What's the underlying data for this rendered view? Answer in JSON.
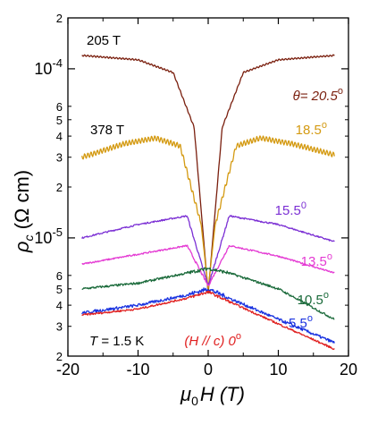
{
  "chart_data": {
    "type": "line",
    "title": "",
    "xlabel": "μ0H (T)",
    "ylabel": "ρc (Ω cm)",
    "x_axis": {
      "label_symbol": "μ",
      "label_sub": "0",
      "label_rest": "H (T)",
      "min": -20,
      "max": 20,
      "ticks": [
        -20,
        -10,
        0,
        10,
        20
      ],
      "tick_labels": [
        "-20",
        "-10",
        "0",
        "10",
        "20"
      ]
    },
    "y_axis": {
      "label_symbol": "ρ",
      "label_sub": "c",
      "label_rest": " (Ω cm)",
      "scale": "log",
      "min": 2e-06,
      "max": 0.0002,
      "major_ticks": [
        {
          "value": 1e-05,
          "base": "10",
          "exp": "-5"
        },
        {
          "value": 0.0001,
          "base": "10",
          "exp": "-4"
        }
      ],
      "minor_ticks": [
        {
          "value": 2e-06,
          "label": "2"
        },
        {
          "value": 3e-06,
          "label": "3"
        },
        {
          "value": 4e-06,
          "label": "4"
        },
        {
          "value": 5e-06,
          "label": "5"
        },
        {
          "value": 6e-06,
          "label": "6"
        },
        {
          "value": 2e-05,
          "label": "2"
        },
        {
          "value": 3e-05,
          "label": "3"
        },
        {
          "value": 4e-05,
          "label": "4"
        },
        {
          "value": 5e-05,
          "label": "5"
        },
        {
          "value": 6e-05,
          "label": "6"
        },
        {
          "value": 0.0002,
          "label": "2"
        }
      ]
    },
    "grid": false,
    "series": [
      {
        "name": "θ= 20.5°",
        "color": "#7a1f0e",
        "base": 0.00012,
        "plateau": 3.2,
        "plateau_at": 1.5,
        "dip": 4.7e-06,
        "tail": 0.0,
        "osc": 0.01,
        "noise": 0.004,
        "x": [
          -18,
          -10,
          -5,
          -2,
          0,
          2,
          5,
          10,
          18
        ],
        "y": [
          0.00012,
          0.000113,
          9.5e-05,
          4.5e-05,
          4.7e-06,
          4.5e-05,
          9.5e-05,
          0.000113,
          0.00012
        ]
      },
      {
        "name": "18.5°",
        "color": "#d49a12",
        "base": 3e-05,
        "plateau": 2.2,
        "plateau_at": 7.5,
        "dip": 5e-06,
        "tail": 0.0,
        "osc": 0.035,
        "noise": 0.006,
        "x": [
          -18,
          -12,
          -7.5,
          -4,
          -1,
          0,
          1,
          4,
          7.5,
          12,
          18
        ],
        "y": [
          3e-05,
          3.6e-05,
          3.9e-05,
          3.5e-05,
          1.2e-05,
          5e-06,
          1.2e-05,
          3.5e-05,
          3.9e-05,
          3.6e-05,
          3.1e-05
        ]
      },
      {
        "name": "15.5°",
        "color": "#7b2fd4",
        "base": 1.45e-05,
        "plateau": 1.6,
        "plateau_at": 2.5,
        "dip": 5.2e-06,
        "tail": -0.25,
        "osc": 0.0,
        "noise": 0.02,
        "x": [
          -18,
          -10,
          -3,
          0,
          3,
          10,
          18
        ],
        "y": [
          1e-05,
          1.2e-05,
          1.35e-05,
          5.2e-06,
          1.35e-05,
          1.2e-05,
          9.5e-06
        ]
      },
      {
        "name": "13.5°",
        "color": "#e43ad3",
        "base": 9e-06,
        "plateau": 1.4,
        "plateau_at": 2.5,
        "dip": 5.2e-06,
        "tail": -0.3,
        "osc": 0.0,
        "noise": 0.02,
        "x": [
          -18,
          -10,
          -3,
          0,
          3,
          10,
          18
        ],
        "y": [
          7e-06,
          8e-06,
          9e-06,
          5.2e-06,
          9e-06,
          7.8e-06,
          6.2e-06
        ]
      },
      {
        "name": "10.5°",
        "color": "#1a6a3a",
        "base": 6.3e-06,
        "plateau": 1.2,
        "plateau_at": 1.0,
        "dip": 5.8e-06,
        "tail": -0.35,
        "osc": 0.0,
        "noise": 0.03,
        "x": [
          -18,
          -10,
          -3,
          0,
          3,
          10,
          18
        ],
        "y": [
          5e-06,
          5.4e-06,
          6.2e-06,
          6.6e-06,
          6.2e-06,
          5e-06,
          3.3e-06
        ]
      },
      {
        "name": "5.5°",
        "color": "#1a33e0",
        "base": 5e-06,
        "plateau": 1.0,
        "plateau_at": 1.0,
        "dip": 5.2e-06,
        "tail": -0.45,
        "osc": 0.0,
        "noise": 0.04,
        "x": [
          -18,
          -10,
          -3,
          0,
          3,
          10,
          18
        ],
        "y": [
          3.6e-06,
          4e-06,
          4.6e-06,
          5e-06,
          4.4e-06,
          3.3e-06,
          2.4e-06
        ]
      },
      {
        "name": "(H // c) 0°",
        "color": "#e02020",
        "base": 4.8e-06,
        "plateau": 1.0,
        "plateau_at": 1.0,
        "dip": 4.8e-06,
        "tail": -0.5,
        "osc": 0.0,
        "noise": 0.025,
        "x": [
          -18,
          -10,
          -3,
          0,
          3,
          10,
          18
        ],
        "y": [
          3.5e-06,
          3.8e-06,
          4.4e-06,
          4.8e-06,
          4.2e-06,
          3.1e-06,
          2.2e-06
        ]
      }
    ],
    "annotations": {
      "period_205": "205 T",
      "period_378": "378 T",
      "temperature_symbol": "T",
      "temperature_rest": " = 1.5 K"
    },
    "series_labels": [
      {
        "text": "θ= 20.5",
        "deg": "o",
        "color": "#7a1f0e"
      },
      {
        "text": "18.5",
        "deg": "o",
        "color": "#d49a12"
      },
      {
        "text": "15.5",
        "deg": "0",
        "color": "#7b2fd4"
      },
      {
        "text": "13.5",
        "deg": "o",
        "color": "#e43ad3"
      },
      {
        "text": "10.5",
        "deg": "o",
        "color": "#1a6a3a"
      },
      {
        "text": "5.5",
        "deg": "o",
        "color": "#1a33e0"
      },
      {
        "text": "(H // c) 0",
        "deg": "o",
        "color": "#e02020"
      }
    ]
  }
}
